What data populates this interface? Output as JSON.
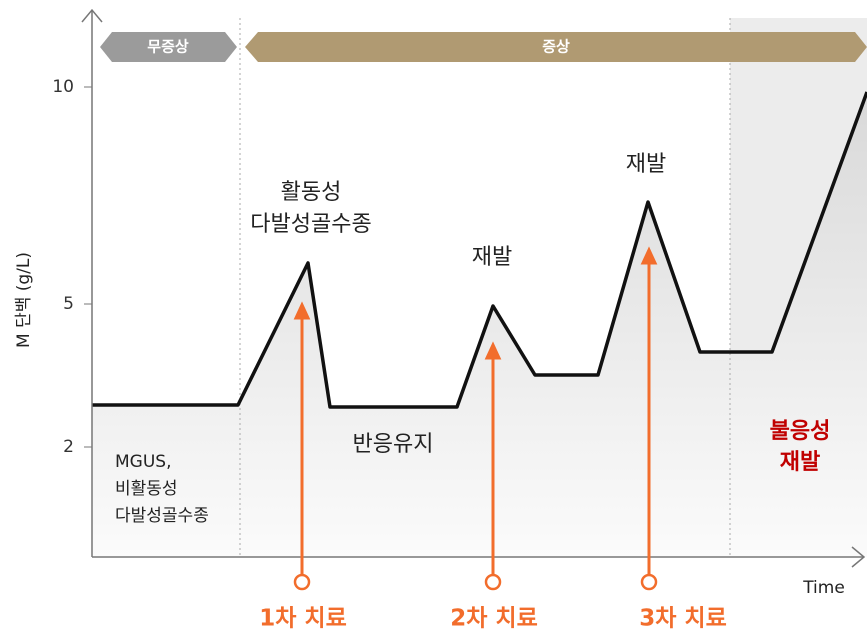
{
  "y_axis": {
    "label": "M 단백 (g/L)",
    "ticks": [
      10,
      5,
      2
    ]
  },
  "x_axis": {
    "label": "Time"
  },
  "phases": [
    "무증상",
    "증상"
  ],
  "annotations": {
    "active": [
      "활동성",
      "다발성골수종"
    ],
    "relapse_1": "재발",
    "relapse_2": "재발",
    "maintenance": "반응유지",
    "mgus": [
      "MGUS,",
      "비활동성",
      "다발성골수종"
    ],
    "refractory": [
      "불응성",
      "재발"
    ]
  },
  "treatments": [
    "1차 치료",
    "2차 치료",
    "3차 치료"
  ]
}
